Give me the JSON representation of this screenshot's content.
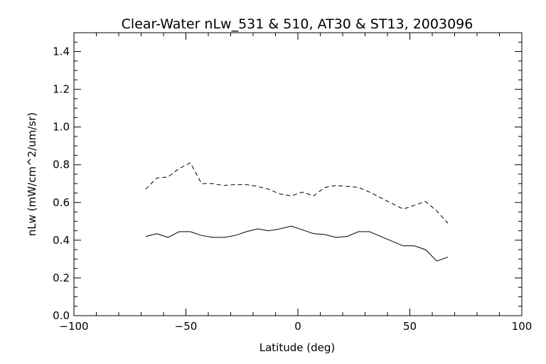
{
  "chart_data": {
    "type": "line",
    "title": "Clear-Water nLw_531 & 510, AT30 & ST13, 2003096",
    "xlabel": "Latitude (deg)",
    "ylabel": "nLw (mW/cm^2/um/sr)",
    "xlim": [
      -100,
      100
    ],
    "ylim": [
      0.0,
      1.5
    ],
    "xticks": [
      -100,
      -50,
      0,
      50,
      100
    ],
    "xtick_labels": [
      "−100",
      "−50",
      "0",
      "50",
      "100"
    ],
    "yticks": [
      0.0,
      0.2,
      0.4,
      0.6,
      0.8,
      1.0,
      1.2,
      1.4
    ],
    "ytick_labels": [
      "0.0",
      "0.2",
      "0.4",
      "0.6",
      "0.8",
      "1.0",
      "1.2",
      "1.4"
    ],
    "grid": false,
    "series": [
      {
        "style": "dashed",
        "x": [
          -68,
          -63,
          -58,
          -53,
          -48,
          -43,
          -38,
          -33,
          -28,
          -23,
          -18,
          -13,
          -8,
          -3,
          2,
          7,
          12,
          17,
          22,
          27,
          32,
          37,
          42,
          47,
          52,
          57,
          62,
          67
        ],
        "y": [
          0.67,
          0.73,
          0.735,
          0.78,
          0.81,
          0.7,
          0.7,
          0.69,
          0.695,
          0.695,
          0.685,
          0.67,
          0.645,
          0.635,
          0.655,
          0.635,
          0.68,
          0.69,
          0.685,
          0.68,
          0.655,
          0.625,
          0.595,
          0.565,
          0.585,
          0.605,
          0.555,
          0.49
        ]
      },
      {
        "style": "solid",
        "x": [
          -68,
          -63,
          -58,
          -53,
          -48,
          -43,
          -38,
          -33,
          -28,
          -23,
          -18,
          -13,
          -8,
          -3,
          2,
          7,
          12,
          17,
          22,
          27,
          32,
          37,
          42,
          47,
          52,
          57,
          62,
          67
        ],
        "y": [
          0.42,
          0.435,
          0.415,
          0.445,
          0.445,
          0.425,
          0.415,
          0.415,
          0.425,
          0.445,
          0.46,
          0.45,
          0.46,
          0.475,
          0.455,
          0.435,
          0.43,
          0.415,
          0.42,
          0.445,
          0.445,
          0.42,
          0.395,
          0.37,
          0.37,
          0.35,
          0.29,
          0.31
        ]
      }
    ]
  }
}
